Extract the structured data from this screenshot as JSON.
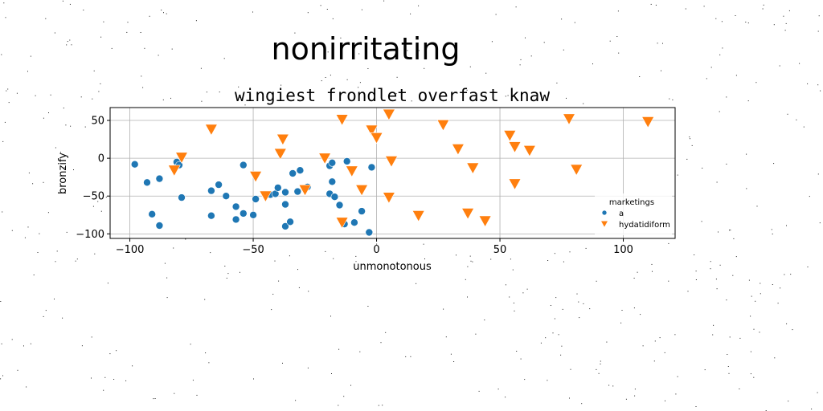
{
  "chart_data": {
    "type": "scatter",
    "suptitle": "nonirritating",
    "title": "wingiest frondlet overfast knaw",
    "xlabel": "unmonotonous",
    "ylabel": "bronzify",
    "xlim": [
      -108,
      121
    ],
    "ylim": [
      -106,
      67
    ],
    "xticks": [
      -100,
      -50,
      0,
      50,
      100
    ],
    "yticks": [
      -100,
      -50,
      0,
      50
    ],
    "grid": true,
    "legend": {
      "title": "marketings",
      "placement": "lower-right"
    },
    "series": [
      {
        "name": "a",
        "marker": "circle",
        "color": "#1f77b4",
        "points": [
          [
            -98,
            -8
          ],
          [
            -93,
            -32
          ],
          [
            -91,
            -74
          ],
          [
            -88,
            -27
          ],
          [
            -88,
            -89
          ],
          [
            -81,
            -5
          ],
          [
            -80,
            -9
          ],
          [
            -79,
            -52
          ],
          [
            -67,
            -43
          ],
          [
            -67,
            -76
          ],
          [
            -64,
            -35
          ],
          [
            -61,
            -50
          ],
          [
            -57,
            -64
          ],
          [
            -57,
            -81
          ],
          [
            -54,
            -73
          ],
          [
            -54,
            -9
          ],
          [
            -50,
            -75
          ],
          [
            -49,
            -54
          ],
          [
            -43,
            -48
          ],
          [
            -41,
            -47
          ],
          [
            -40,
            -39
          ],
          [
            -37,
            -45
          ],
          [
            -37,
            -61
          ],
          [
            -37,
            -90
          ],
          [
            -35,
            -84
          ],
          [
            -34,
            -20
          ],
          [
            -32,
            -44
          ],
          [
            -31,
            -16
          ],
          [
            -28,
            -38
          ],
          [
            -19,
            -10
          ],
          [
            -19,
            -47
          ],
          [
            -18,
            -6
          ],
          [
            -18,
            -31
          ],
          [
            -17,
            -51
          ],
          [
            -15,
            -62
          ],
          [
            -13,
            -87
          ],
          [
            -12,
            -4
          ],
          [
            -9,
            -85
          ],
          [
            -6,
            -70
          ],
          [
            -3,
            -98
          ],
          [
            -2,
            -12
          ]
        ]
      },
      {
        "name": "hydatidiform",
        "marker": "triangle-down",
        "color": "#ff7f0e",
        "points": [
          [
            -82,
            -16
          ],
          [
            -79,
            1
          ],
          [
            -67,
            38
          ],
          [
            -49,
            -24
          ],
          [
            -45,
            -50
          ],
          [
            -39,
            6
          ],
          [
            -38,
            25
          ],
          [
            -29,
            -42
          ],
          [
            -21,
            0
          ],
          [
            -14,
            51
          ],
          [
            -14,
            -85
          ],
          [
            -10,
            -17
          ],
          [
            -6,
            -42
          ],
          [
            -2,
            37
          ],
          [
            0,
            27
          ],
          [
            5,
            58
          ],
          [
            5,
            -52
          ],
          [
            6,
            -4
          ],
          [
            17,
            -76
          ],
          [
            27,
            44
          ],
          [
            33,
            12
          ],
          [
            37,
            -73
          ],
          [
            39,
            -13
          ],
          [
            44,
            -83
          ],
          [
            54,
            30
          ],
          [
            56,
            15
          ],
          [
            56,
            -34
          ],
          [
            62,
            10
          ],
          [
            78,
            52
          ],
          [
            81,
            -15
          ],
          [
            110,
            48
          ]
        ]
      }
    ]
  }
}
